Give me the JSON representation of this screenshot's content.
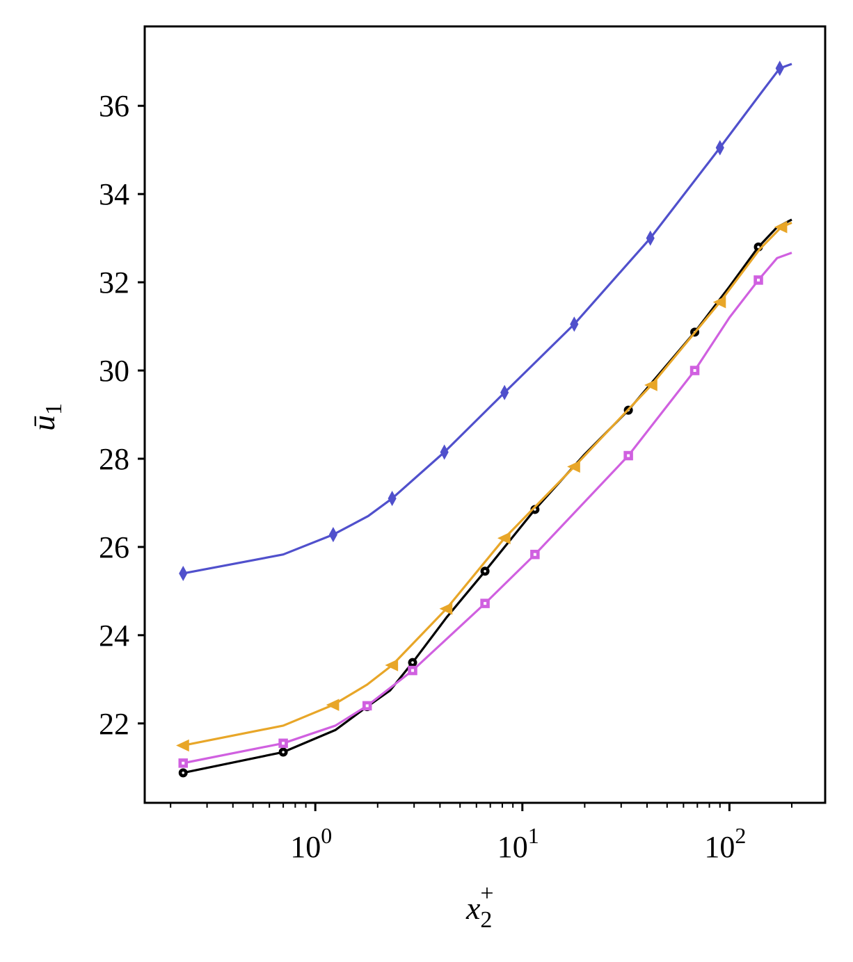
{
  "chart_data": {
    "type": "line",
    "xlabel": "x2+",
    "ylabel": "ū1",
    "xscale": "log",
    "xlim": [
      0.15,
      290
    ],
    "ylim": [
      20.2,
      37.8
    ],
    "x_ticks": [
      {
        "value": 1,
        "base": "10",
        "exp": "0"
      },
      {
        "value": 10,
        "base": "10",
        "exp": "1"
      },
      {
        "value": 100,
        "base": "10",
        "exp": "2"
      }
    ],
    "y_ticks": [
      22,
      24,
      26,
      28,
      30,
      32,
      34,
      36
    ],
    "grid": false,
    "series": [
      {
        "color": "#5050cc",
        "marker": "thin_diamond",
        "x": [
          0.23,
          0.7,
          1.22,
          1.8,
          2.35,
          4.2,
          8.2,
          17.8,
          41.5,
          90,
          140,
          175,
          200
        ],
        "values": [
          25.4,
          25.83,
          26.28,
          26.7,
          27.1,
          28.15,
          29.5,
          31.05,
          33.0,
          35.05,
          36.25,
          36.85,
          36.95
        ],
        "markers_at": [
          0.23,
          1.22,
          2.35,
          4.2,
          8.2,
          17.8,
          41.5,
          90,
          175
        ]
      },
      {
        "color": "#000000",
        "marker": "circle",
        "x": [
          0.23,
          0.7,
          1.25,
          1.78,
          2.3,
          2.95,
          4.3,
          6.6,
          11.5,
          20,
          32.5,
          68,
          100,
          138,
          170,
          200
        ],
        "values": [
          20.88,
          21.35,
          21.85,
          22.38,
          22.75,
          23.38,
          24.4,
          25.45,
          26.85,
          28.1,
          29.1,
          30.87,
          31.9,
          32.8,
          33.25,
          33.42
        ],
        "markers_at": [
          0.23,
          0.7,
          1.78,
          2.95,
          6.6,
          11.5,
          32.5,
          68,
          138
        ]
      },
      {
        "color": "#e8a628",
        "marker": "triangle_left",
        "x": [
          0.23,
          0.7,
          1.22,
          1.78,
          2.35,
          4.3,
          8.2,
          17.8,
          42,
          90,
          140,
          178,
          200
        ],
        "values": [
          21.5,
          21.95,
          22.42,
          22.88,
          23.32,
          24.6,
          26.2,
          27.82,
          29.67,
          31.55,
          32.75,
          33.25,
          33.35
        ],
        "markers_at": [
          0.23,
          1.22,
          2.35,
          4.3,
          8.2,
          17.8,
          42,
          90,
          178
        ]
      },
      {
        "color": "#d060e0",
        "marker": "square",
        "x": [
          0.23,
          0.7,
          1.25,
          1.78,
          2.95,
          6.6,
          11.5,
          32.5,
          68,
          100,
          138,
          170,
          200
        ],
        "values": [
          21.1,
          21.55,
          21.95,
          22.4,
          23.2,
          24.72,
          25.83,
          28.07,
          30.0,
          31.2,
          32.05,
          32.55,
          32.67
        ],
        "markers_at": [
          0.23,
          0.7,
          1.78,
          2.95,
          6.6,
          11.5,
          32.5,
          68,
          138
        ]
      }
    ]
  }
}
